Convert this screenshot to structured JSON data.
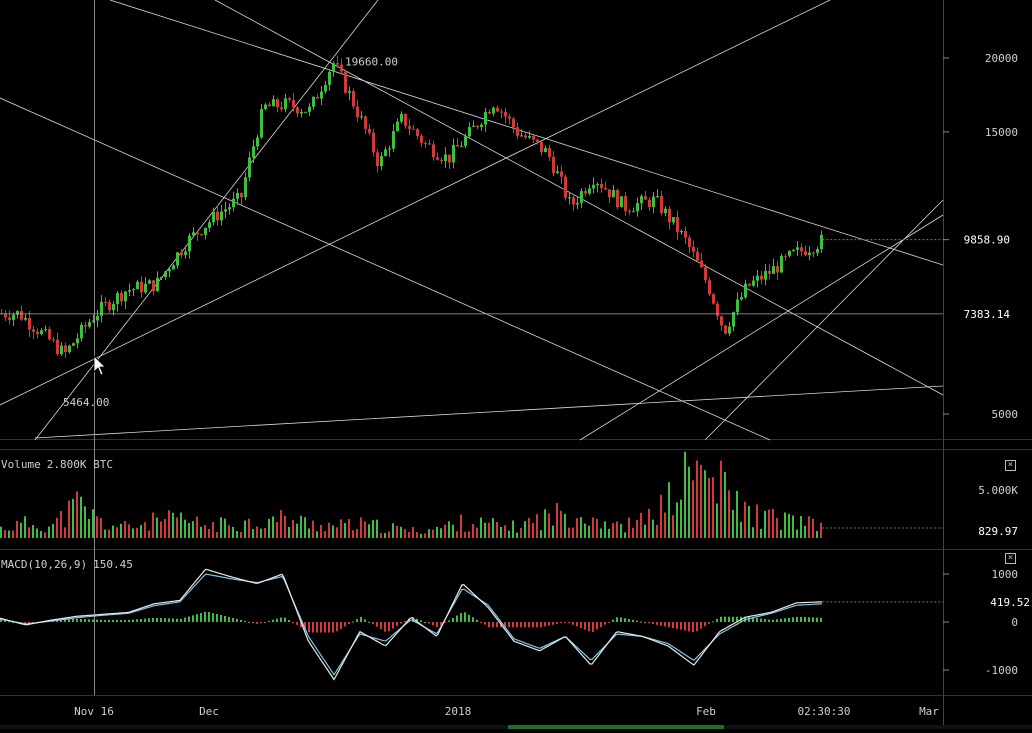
{
  "colors": {
    "background": "#000000",
    "up": "#3fbf3f",
    "down": "#d03a3a",
    "trendline": "#d9d9d9",
    "macd_line": "#e8e8e8",
    "signal_line": "#7fc8e8",
    "grid_text": "#cfcfcf"
  },
  "price_pane": {
    "high_label": "19660.00",
    "low_label": "5464.00",
    "last_price": "9858.90",
    "crosshair_price": "7383.14"
  },
  "volume_pane": {
    "title": "Volume",
    "value": "2.800K BTC",
    "last_value": "829.97",
    "close_icon": "close-icon"
  },
  "macd_pane": {
    "title": "MACD(10,26,9)",
    "value": "150.45",
    "last_value": "419.52",
    "close_icon": "close-icon"
  },
  "x_axis": {
    "labels": [
      "Nov 16",
      "Dec",
      "2018",
      "Feb",
      "02:30:30",
      "Mar"
    ]
  },
  "chart_data": [
    {
      "type": "candlestick",
      "series": [
        {
          "name": "",
          "x": [
            "2017-11-06",
            "2017-11-12",
            "2017-11-16",
            "2017-11-20",
            "2017-11-24",
            "2017-11-28",
            "2017-12-02",
            "2017-12-05",
            "2017-12-08",
            "2017-12-11",
            "2017-12-14",
            "2017-12-17",
            "2017-12-20",
            "2017-12-23",
            "2017-12-26",
            "2017-12-29",
            "2018-01-01",
            "2018-01-04",
            "2018-01-07",
            "2018-01-10",
            "2018-01-14",
            "2018-01-17",
            "2018-01-20",
            "2018-01-24",
            "2018-01-28",
            "2018-02-01",
            "2018-02-04",
            "2018-02-06",
            "2018-02-09",
            "2018-02-12",
            "2018-02-15",
            "2018-02-18",
            "2018-02-19"
          ],
          "y": [
            7400,
            6300,
            7383,
            8100,
            8300,
            9800,
            10900,
            11600,
            16500,
            16700,
            16300,
            19660,
            16400,
            13200,
            15800,
            14300,
            13500,
            15000,
            16900,
            15000,
            13800,
            11200,
            12600,
            11200,
            11500,
            9800,
            8200,
            6900,
            8200,
            8700,
            9300,
            9700,
            9858.9
          ]
        }
      ],
      "ylim": [
        4000,
        22000
      ],
      "yticks": [
        5000,
        15000,
        20000
      ],
      "yticks_labels": [
        "5000",
        "15000",
        "20000"
      ]
    },
    {
      "type": "bar",
      "title": "Volume",
      "series": [
        {
          "name": "",
          "values": [
            0.8,
            1.2,
            1.0,
            2.8,
            1.1,
            0.9,
            1.4,
            1.5,
            1.0,
            1.2,
            1.3,
            1.6,
            1.2,
            1.0,
            1.1,
            0.9,
            0.6,
            0.8,
            1.3,
            1.1,
            0.9,
            1.6,
            2.1,
            1.8,
            0.9,
            1.4,
            3.0,
            5.8,
            4.2,
            2.1,
            1.6,
            1.4,
            0.83
          ]
        }
      ],
      "ylim": [
        0,
        7
      ],
      "yticks_labels": [
        "5.000K"
      ]
    },
    {
      "type": "line",
      "title": "MACD(10,26,9)",
      "series": [
        {
          "name": "",
          "values": [
            80,
            -60,
            40,
            120,
            160,
            200,
            380,
            450,
            1100,
            940,
            800,
            1000,
            -400,
            -1200,
            -200,
            -500,
            100,
            -300,
            800,
            300,
            -400,
            -600,
            -300,
            -900,
            -200,
            -300,
            -500,
            -900,
            -200,
            100,
            200,
            400,
            419.52
          ]
        },
        {
          "name": "",
          "values": [
            60,
            -40,
            20,
            90,
            140,
            180,
            340,
            420,
            1000,
            900,
            820,
            950,
            -300,
            -1100,
            -250,
            -400,
            50,
            -250,
            700,
            350,
            -350,
            -550,
            -300,
            -800,
            -250,
            -300,
            -450,
            -800,
            -250,
            50,
            180,
            350,
            380
          ]
        }
      ],
      "ylim": [
        -1300,
        1300
      ],
      "yticks_labels": [
        "1000",
        "0",
        "-1000"
      ]
    }
  ]
}
